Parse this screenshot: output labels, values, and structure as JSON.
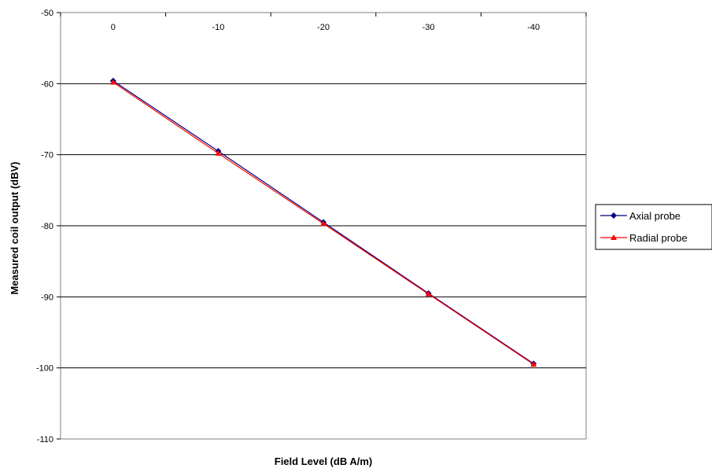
{
  "chart_data": {
    "type": "line",
    "categories": [
      "0",
      "-10",
      "-20",
      "-30",
      "-40"
    ],
    "xlabel": "Field Level (dB A/m)",
    "ylabel": "Measured coil output (dBV)",
    "ylim": [
      -110,
      -50
    ],
    "yticks": [
      -50,
      -60,
      -70,
      -80,
      -90,
      -100,
      -110
    ],
    "y_grid": true,
    "x_tick_position": "top",
    "legend_position": "right",
    "series": [
      {
        "name": "Axial probe",
        "values": [
          -59.6,
          -69.5,
          -79.5,
          -89.5,
          -99.4
        ],
        "color": "#000080",
        "marker": "diamond"
      },
      {
        "name": "Radial probe",
        "values": [
          -59.8,
          -69.8,
          -79.7,
          -89.6,
          -99.5
        ],
        "color": "#FF0000",
        "marker": "triangle"
      }
    ]
  }
}
